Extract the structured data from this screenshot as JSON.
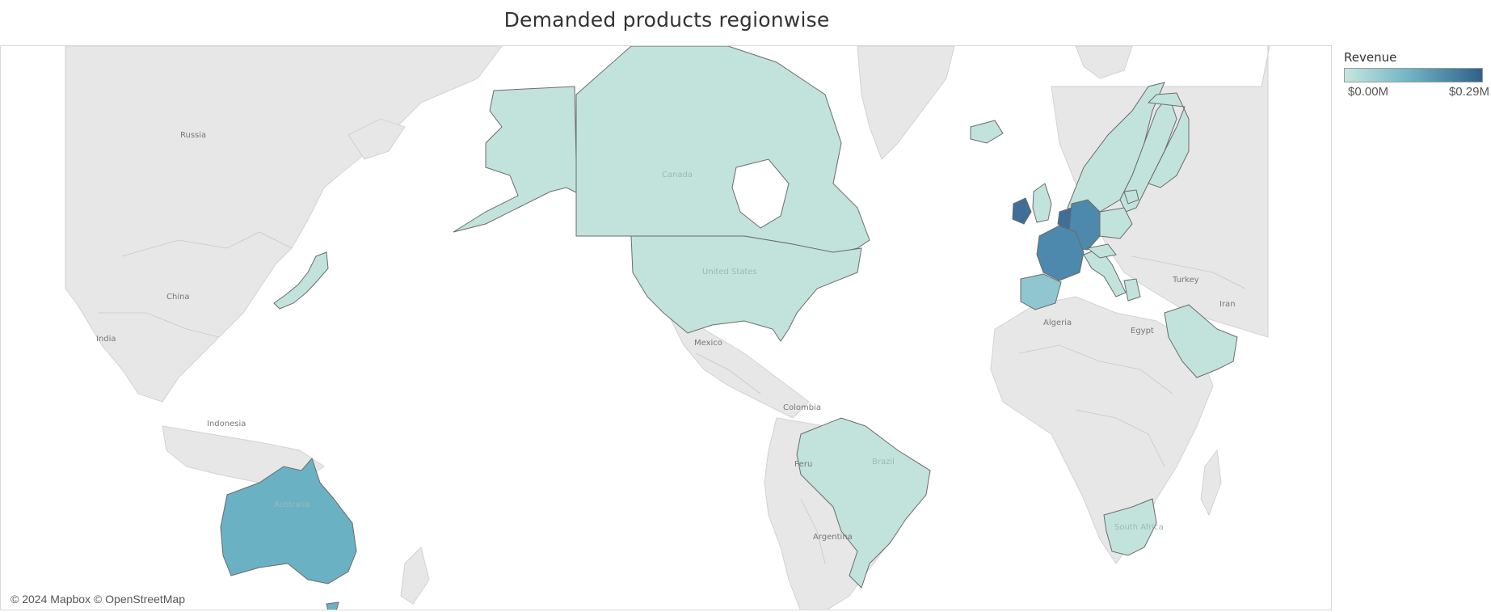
{
  "title": "Demanded products regionwise",
  "legend": {
    "title": "Revenue",
    "min_label": "$0.00M",
    "max_label": "$0.29M",
    "min_value": 0.0,
    "max_value": 0.29,
    "color_low": "#c6e6df",
    "color_high": "#2f6189"
  },
  "attribution": "© 2024 Mapbox © OpenStreetMap",
  "colors": {
    "land": "#e6e6e6",
    "ocean": "#ffffff",
    "border": "#6b6b6b",
    "low": "#c2e3db",
    "mid": "#6ab1c3",
    "high": "#4c89ad",
    "top": "#3f6f97"
  },
  "map_labels": {
    "russia": "Russia",
    "china": "China",
    "india": "India",
    "indonesia": "Indonesia",
    "canada": "Canada",
    "us": "United States",
    "mexico": "Mexico",
    "colombia": "Colombia",
    "peru": "Peru",
    "brazil": "Brazil",
    "argentina": "Argentina",
    "algeria": "Algeria",
    "egypt": "Egypt",
    "turkey": "Turkey",
    "iran": "Iran",
    "australia": "Australia",
    "south_africa": "South Africa"
  },
  "regions": [
    {
      "name": "Australia",
      "level": "mid"
    },
    {
      "name": "France",
      "level": "high"
    },
    {
      "name": "Germany",
      "level": "high"
    },
    {
      "name": "Ireland",
      "level": "top"
    },
    {
      "name": "Netherlands",
      "level": "top"
    },
    {
      "name": "United States",
      "level": "low"
    },
    {
      "name": "Canada",
      "level": "low"
    },
    {
      "name": "Brazil",
      "level": "low"
    },
    {
      "name": "Japan",
      "level": "low"
    },
    {
      "name": "Spain",
      "level": "low"
    },
    {
      "name": "Sweden",
      "level": "low"
    },
    {
      "name": "Saudi Arabia",
      "level": "low"
    },
    {
      "name": "South Africa",
      "level": "low"
    }
  ]
}
